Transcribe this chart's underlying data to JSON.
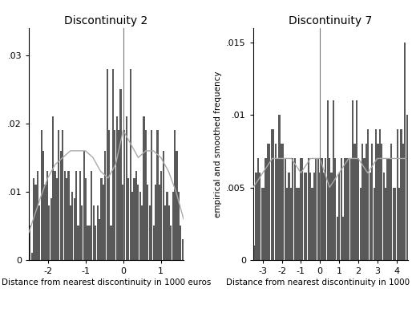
{
  "title1": "Discontinuity 2",
  "title2": "Discontinuity 7",
  "xlabel": "Distance from nearest discontinuity in 1000 euros",
  "ylabel": "empirical and smoothed frequency",
  "plot1": {
    "xlim": [
      -2.5,
      1.6
    ],
    "ylim": [
      0,
      0.034
    ],
    "yticks": [
      0,
      0.01,
      0.02,
      0.03
    ],
    "ytick_labels": [
      "0",
      ".01",
      ".02",
      ".03"
    ],
    "xticks": [
      -2,
      -1,
      0,
      1
    ],
    "bar_color": "#595959",
    "vline_x": 0,
    "smooth_color": "#aaaaaa",
    "bar_heights": [
      0.005,
      0.001,
      0.012,
      0.011,
      0.013,
      0.008,
      0.019,
      0.016,
      0.011,
      0.013,
      0.008,
      0.009,
      0.021,
      0.013,
      0.012,
      0.019,
      0.016,
      0.019,
      0.013,
      0.012,
      0.013,
      0.008,
      0.01,
      0.009,
      0.013,
      0.005,
      0.013,
      0.008,
      0.016,
      0.012,
      0.005,
      0.005,
      0.013,
      0.008,
      0.005,
      0.008,
      0.006,
      0.012,
      0.011,
      0.016,
      0.028,
      0.019,
      0.005,
      0.028,
      0.019,
      0.021,
      0.019,
      0.025,
      0.011,
      0.019,
      0.021,
      0.012,
      0.028,
      0.01,
      0.012,
      0.013,
      0.011,
      0.01,
      0.008,
      0.021,
      0.019,
      0.011,
      0.008,
      0.019,
      0.005,
      0.011,
      0.019,
      0.011,
      0.013,
      0.016,
      0.008,
      0.01,
      0.008,
      0.005,
      0.01,
      0.019,
      0.016,
      0.01,
      0.005,
      0.003
    ],
    "smooth_x": [
      -2.5,
      -2.2,
      -2.0,
      -1.8,
      -1.6,
      -1.4,
      -1.2,
      -1.0,
      -0.8,
      -0.6,
      -0.4,
      -0.2,
      0.0,
      0.2,
      0.4,
      0.6,
      0.8,
      1.0,
      1.2,
      1.4,
      1.6
    ],
    "smooth_y": [
      0.004,
      0.009,
      0.012,
      0.014,
      0.015,
      0.016,
      0.016,
      0.016,
      0.015,
      0.013,
      0.012,
      0.014,
      0.019,
      0.017,
      0.015,
      0.016,
      0.016,
      0.015,
      0.013,
      0.01,
      0.006
    ]
  },
  "plot2": {
    "xlim": [
      -3.5,
      4.6
    ],
    "ylim": [
      0,
      0.016
    ],
    "yticks": [
      0,
      0.005,
      0.01,
      0.015
    ],
    "ytick_labels": [
      "0",
      ".005",
      ".01",
      ".015"
    ],
    "xticks": [
      -3,
      -2,
      -1,
      0,
      1,
      2,
      3,
      4
    ],
    "bar_color": "#595959",
    "vline_x": 0,
    "smooth_color": "#aaaaaa",
    "bar_heights": [
      0.001,
      0.006,
      0.007,
      0.006,
      0.005,
      0.005,
      0.007,
      0.008,
      0.008,
      0.009,
      0.009,
      0.008,
      0.007,
      0.01,
      0.008,
      0.008,
      0.007,
      0.005,
      0.006,
      0.005,
      0.007,
      0.007,
      0.005,
      0.005,
      0.007,
      0.007,
      0.006,
      0.006,
      0.007,
      0.006,
      0.005,
      0.006,
      0.007,
      0.007,
      0.006,
      0.007,
      0.006,
      0.007,
      0.011,
      0.007,
      0.006,
      0.011,
      0.007,
      0.003,
      0.006,
      0.007,
      0.003,
      0.007,
      0.007,
      0.007,
      0.007,
      0.011,
      0.008,
      0.011,
      0.007,
      0.005,
      0.008,
      0.007,
      0.008,
      0.009,
      0.006,
      0.008,
      0.005,
      0.009,
      0.008,
      0.009,
      0.008,
      0.006,
      0.005,
      0.007,
      0.007,
      0.008,
      0.005,
      0.005,
      0.009,
      0.005,
      0.009,
      0.008,
      0.015,
      0.01
    ],
    "smooth_x": [
      -3.5,
      -3.0,
      -2.5,
      -2.0,
      -1.5,
      -1.0,
      -0.5,
      0.0,
      0.5,
      1.0,
      1.5,
      2.0,
      2.5,
      3.0,
      3.5,
      4.0,
      4.5
    ],
    "smooth_y": [
      0.005,
      0.006,
      0.007,
      0.007,
      0.007,
      0.006,
      0.007,
      0.007,
      0.005,
      0.006,
      0.007,
      0.007,
      0.006,
      0.007,
      0.007,
      0.007,
      0.007
    ]
  },
  "background_color": "#ffffff",
  "title_fontsize": 10,
  "label_fontsize": 7.5,
  "tick_fontsize": 8
}
